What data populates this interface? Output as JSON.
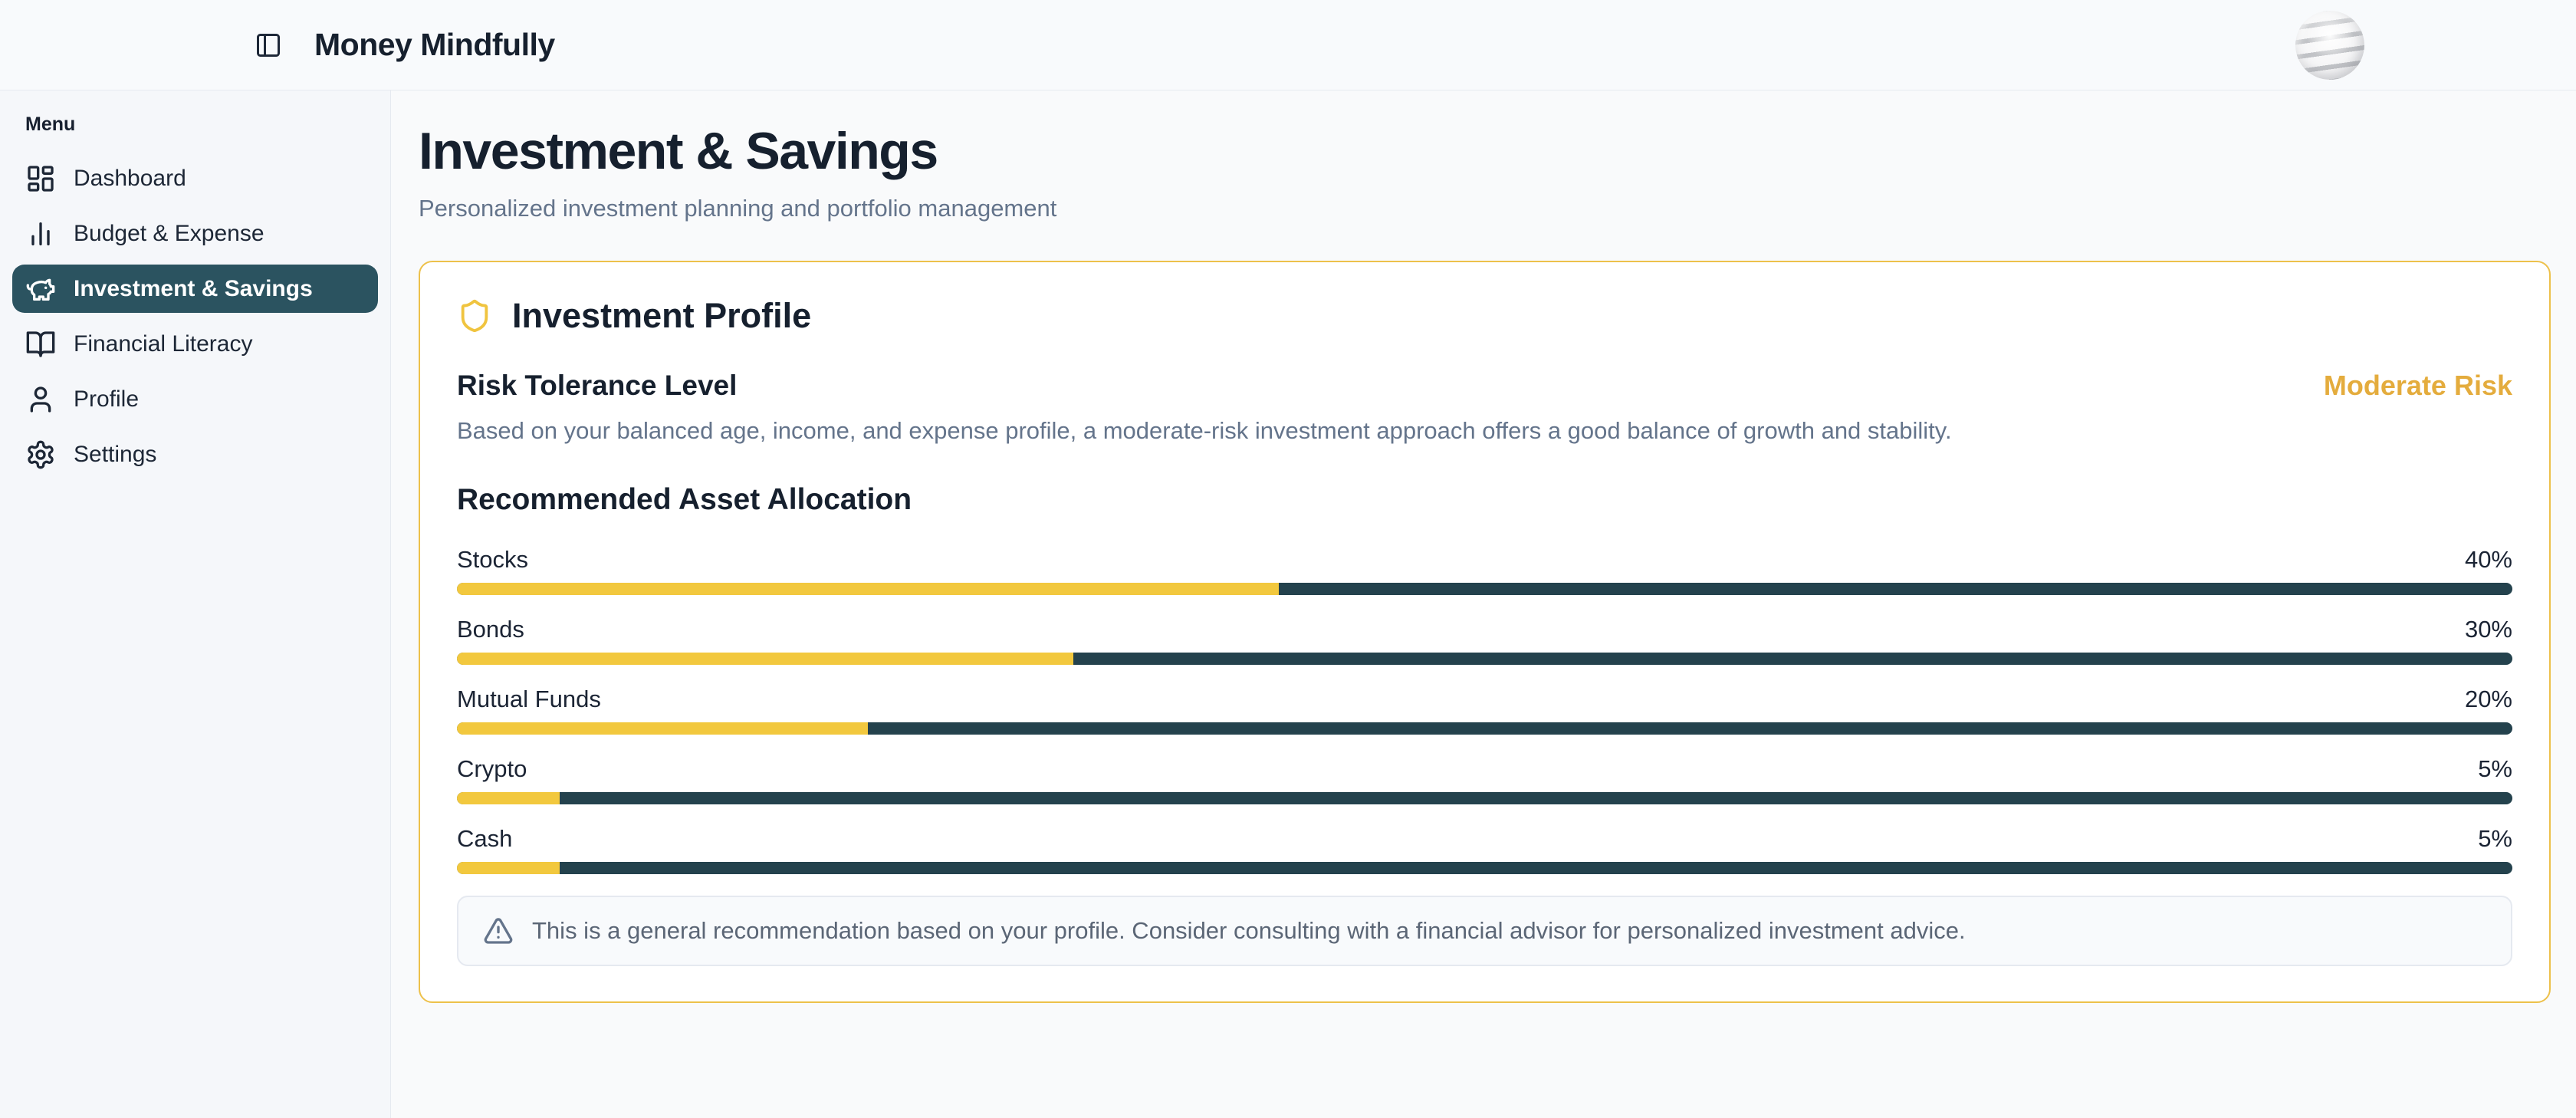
{
  "header": {
    "app_title": "Money Mindfully"
  },
  "sidebar": {
    "menu_label": "Menu",
    "items": [
      {
        "label": "Dashboard",
        "icon": "layout-dashboard-icon",
        "active": false
      },
      {
        "label": "Budget & Expense",
        "icon": "bar-chart-icon",
        "active": false
      },
      {
        "label": "Investment & Savings",
        "icon": "piggy-bank-icon",
        "active": true
      },
      {
        "label": "Financial Literacy",
        "icon": "book-open-icon",
        "active": false
      },
      {
        "label": "Profile",
        "icon": "user-icon",
        "active": false
      },
      {
        "label": "Settings",
        "icon": "gear-icon",
        "active": false
      }
    ]
  },
  "page": {
    "title": "Investment & Savings",
    "subtitle": "Personalized investment planning and portfolio management"
  },
  "investment_profile": {
    "title": "Investment Profile",
    "risk_heading": "Risk Tolerance Level",
    "risk_level": "Moderate Risk",
    "risk_description": "Based on your balanced age, income, and expense profile, a moderate-risk investment approach offers a good balance of growth and stability.",
    "allocation_heading": "Recommended Asset Allocation",
    "allocation": [
      {
        "label": "Stocks",
        "percent_label": "40%",
        "value": 40
      },
      {
        "label": "Bonds",
        "percent_label": "30%",
        "value": 30
      },
      {
        "label": "Mutual Funds",
        "percent_label": "20%",
        "value": 20
      },
      {
        "label": "Crypto",
        "percent_label": "5%",
        "value": 5
      },
      {
        "label": "Cash",
        "percent_label": "5%",
        "value": 5
      }
    ],
    "note": "This is a general recommendation based on your profile. Consider consulting with a financial advisor for personalized investment advice."
  },
  "colors": {
    "accent_gold_text": "#E4AC3D",
    "bar_fill_yellow": "#F2C83E",
    "bar_track_teal": "#24424D",
    "sidebar_active_bg": "#2B5360",
    "card_border_gold": "#EDC14B"
  }
}
